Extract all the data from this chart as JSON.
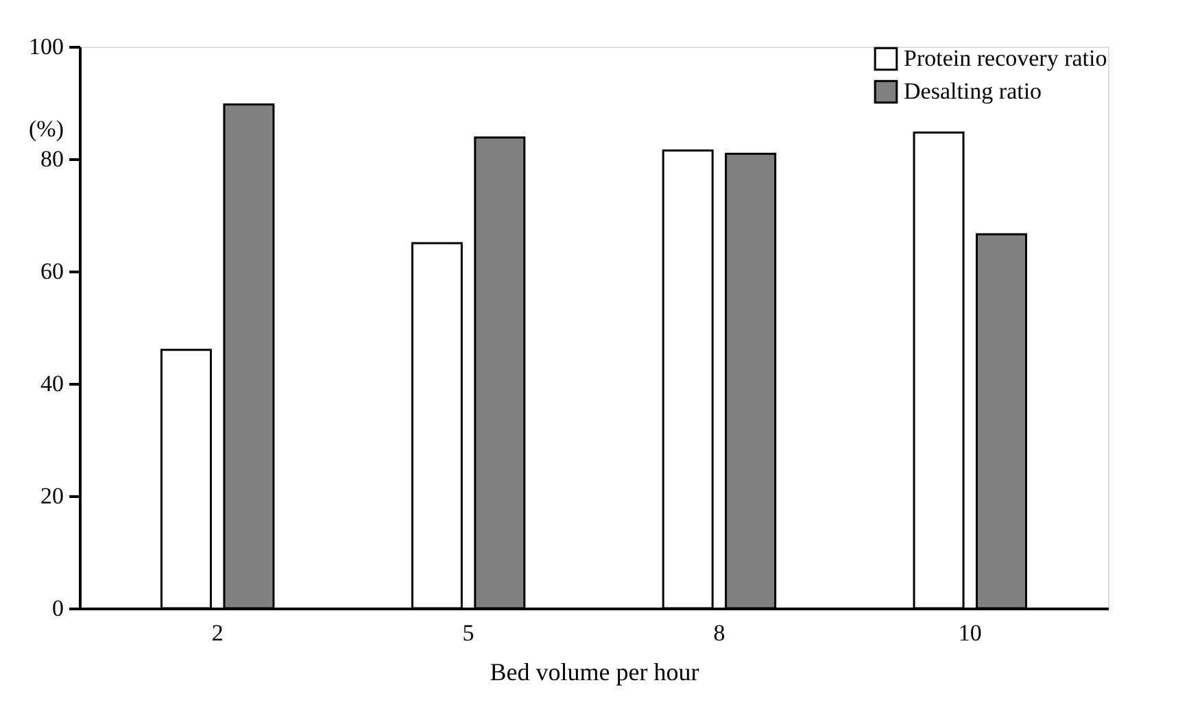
{
  "chart_data": {
    "type": "bar",
    "xlabel": "Bed volume per hour",
    "ylabel": "(%)",
    "categories": [
      "2",
      "5",
      "8",
      "10"
    ],
    "series": [
      {
        "name": "Protein recovery ratio",
        "color": "#ffffff",
        "values": [
          46,
          65,
          81.5,
          84.7
        ]
      },
      {
        "name": "Desalting ratio",
        "color": "#808080",
        "values": [
          89.7,
          83.8,
          80.9,
          66.6
        ]
      }
    ],
    "ylim": [
      0,
      100
    ],
    "yticks": [
      0,
      20,
      40,
      60,
      80,
      100
    ],
    "grid": false,
    "legend": "top right"
  }
}
